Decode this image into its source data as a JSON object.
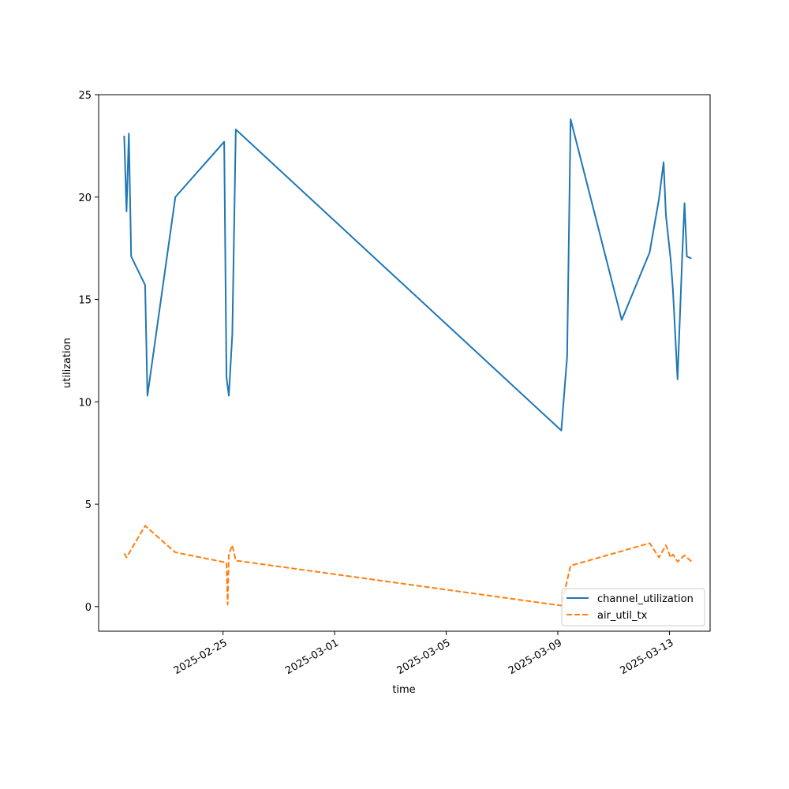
{
  "chart_data": {
    "type": "line",
    "title": "",
    "xlabel": "time",
    "ylabel": "utilization",
    "xlim": [
      "2025-02-20T13:00",
      "2025-03-14T11:00"
    ],
    "ylim": [
      -1.2,
      25
    ],
    "x_ticks": [
      "2025-02-25",
      "2025-03-01",
      "2025-03-05",
      "2025-03-09",
      "2025-03-13"
    ],
    "y_ticks": [
      0,
      5,
      10,
      15,
      20,
      25
    ],
    "grid": false,
    "legend_position": "lower-right",
    "series": [
      {
        "name": "channel_utilization",
        "color": "#1f77b4",
        "dash": "solid",
        "points": [
          [
            "2025-02-21T11:00",
            23.0
          ],
          [
            "2025-02-21T13:00",
            19.3
          ],
          [
            "2025-02-21T15:00",
            23.1
          ],
          [
            "2025-02-21T17:00",
            17.1
          ],
          [
            "2025-02-22T05:00",
            15.7
          ],
          [
            "2025-02-22T07:00",
            10.3
          ],
          [
            "2025-02-23T07:00",
            20.0
          ],
          [
            "2025-02-25T01:00",
            22.7
          ],
          [
            "2025-02-25T03:00",
            11.2
          ],
          [
            "2025-02-25T05:00",
            10.3
          ],
          [
            "2025-02-25T08:00",
            13.3
          ],
          [
            "2025-02-25T11:00",
            23.3
          ],
          [
            "2025-03-09T03:00",
            8.6
          ],
          [
            "2025-03-09T08:00",
            12.2
          ],
          [
            "2025-03-09T11:00",
            23.8
          ],
          [
            "2025-03-11T07:00",
            14.0
          ],
          [
            "2025-03-12T07:00",
            17.3
          ],
          [
            "2025-03-12T15:00",
            19.9
          ],
          [
            "2025-03-12T19:00",
            21.7
          ],
          [
            "2025-03-12T21:00",
            19.1
          ],
          [
            "2025-03-13T01:00",
            17.0
          ],
          [
            "2025-03-13T03:00",
            15.5
          ],
          [
            "2025-03-13T07:00",
            11.1
          ],
          [
            "2025-03-13T11:00",
            17.1
          ],
          [
            "2025-03-13T13:00",
            19.7
          ],
          [
            "2025-03-13T15:00",
            17.1
          ],
          [
            "2025-03-13T19:00",
            17.0
          ]
        ]
      },
      {
        "name": "air_util_tx",
        "color": "#ff7f0e",
        "dash": "dashed",
        "points": [
          [
            "2025-02-21T11:00",
            2.6
          ],
          [
            "2025-02-21T13:00",
            2.4
          ],
          [
            "2025-02-22T05:00",
            3.95
          ],
          [
            "2025-02-23T07:00",
            2.65
          ],
          [
            "2025-02-25T03:00",
            2.15
          ],
          [
            "2025-02-25T04:00",
            0.1
          ],
          [
            "2025-02-25T05:00",
            2.55
          ],
          [
            "2025-02-25T08:00",
            3.0
          ],
          [
            "2025-02-25T11:00",
            2.25
          ],
          [
            "2025-03-09T03:00",
            0.05
          ],
          [
            "2025-03-09T11:00",
            2.0
          ],
          [
            "2025-03-12T07:00",
            3.1
          ],
          [
            "2025-03-12T15:00",
            2.4
          ],
          [
            "2025-03-12T21:00",
            3.0
          ],
          [
            "2025-03-13T01:00",
            2.4
          ],
          [
            "2025-03-13T03:00",
            2.55
          ],
          [
            "2025-03-13T07:00",
            2.2
          ],
          [
            "2025-03-13T13:00",
            2.5
          ],
          [
            "2025-03-13T19:00",
            2.2
          ]
        ]
      }
    ]
  }
}
